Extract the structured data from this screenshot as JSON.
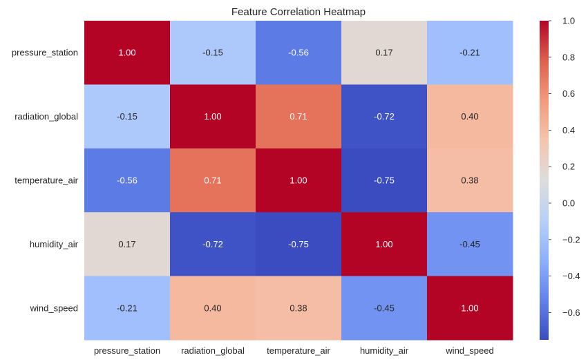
{
  "chart_data": {
    "type": "heatmap",
    "title": "Feature Correlation Heatmap",
    "xlabel": "",
    "ylabel": "",
    "row_labels": [
      "pressure_station",
      "radiation_global",
      "temperature_air",
      "humidity_air",
      "wind_speed"
    ],
    "col_labels": [
      "pressure_station",
      "radiation_global",
      "temperature_air",
      "humidity_air",
      "wind_speed"
    ],
    "values": [
      [
        1.0,
        -0.15,
        -0.56,
        0.17,
        -0.21
      ],
      [
        -0.15,
        1.0,
        0.71,
        -0.72,
        0.4
      ],
      [
        -0.56,
        0.71,
        1.0,
        -0.75,
        0.38
      ],
      [
        0.17,
        -0.72,
        -0.75,
        1.0,
        -0.45
      ],
      [
        -0.21,
        0.4,
        0.38,
        -0.45,
        1.0
      ]
    ],
    "cell_labels": [
      [
        "1.00",
        "-0.15",
        "-0.56",
        "0.17",
        "-0.21"
      ],
      [
        "-0.15",
        "1.00",
        "0.71",
        "-0.72",
        "0.40"
      ],
      [
        "-0.56",
        "0.71",
        "1.00",
        "-0.75",
        "0.38"
      ],
      [
        "0.17",
        "-0.72",
        "-0.75",
        "1.00",
        "-0.45"
      ],
      [
        "-0.21",
        "0.40",
        "0.38",
        "-0.45",
        "1.00"
      ]
    ],
    "colormap": "coolwarm",
    "colorbar": {
      "range": [
        -0.75,
        1.0
      ],
      "ticks": [
        1.0,
        0.8,
        0.6,
        0.4,
        0.2,
        0.0,
        -0.2,
        -0.4,
        -0.6
      ],
      "tick_labels": [
        "1.0",
        "0.8",
        "0.6",
        "0.4",
        "0.2",
        "0.0",
        "−0.2",
        "−0.4",
        "−0.6"
      ]
    },
    "grid": false,
    "legend": "colorbar-right",
    "colors": {
      "low": "#3b4cc0",
      "mid": "#dddddd",
      "high": "#b40426"
    }
  }
}
